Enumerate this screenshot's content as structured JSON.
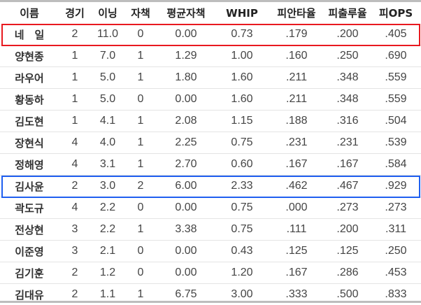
{
  "table": {
    "headers": [
      "이름",
      "경기",
      "이닝",
      "자책",
      "평균자책",
      "WHIP",
      "피안타율",
      "피출루율",
      "피OPS"
    ],
    "rows": [
      [
        "네　일",
        "2",
        "11.0",
        "0",
        "0.00",
        "0.73",
        ".179",
        ".200",
        ".405"
      ],
      [
        "양현종",
        "1",
        "7.0",
        "1",
        "1.29",
        "1.00",
        ".160",
        ".250",
        ".690"
      ],
      [
        "라우어",
        "1",
        "5.0",
        "1",
        "1.80",
        "1.60",
        ".211",
        ".348",
        ".559"
      ],
      [
        "황동하",
        "1",
        "5.0",
        "0",
        "0.00",
        "1.60",
        ".211",
        ".348",
        ".559"
      ],
      [
        "김도현",
        "1",
        "4.1",
        "1",
        "2.08",
        "1.15",
        ".188",
        ".316",
        ".504"
      ],
      [
        "장현식",
        "4",
        "4.0",
        "1",
        "2.25",
        "0.75",
        ".231",
        ".231",
        ".539"
      ],
      [
        "정해영",
        "4",
        "3.1",
        "1",
        "2.70",
        "0.60",
        ".167",
        ".167",
        ".584"
      ],
      [
        "김사윤",
        "2",
        "3.0",
        "2",
        "6.00",
        "2.33",
        ".462",
        ".467",
        ".929"
      ],
      [
        "곽도규",
        "4",
        "2.2",
        "0",
        "0.00",
        "0.75",
        ".000",
        ".273",
        ".273"
      ],
      [
        "전상현",
        "3",
        "2.2",
        "1",
        "3.38",
        "0.75",
        ".111",
        ".200",
        ".311"
      ],
      [
        "이준영",
        "3",
        "2.1",
        "0",
        "0.00",
        "0.43",
        ".125",
        ".125",
        ".250"
      ],
      [
        "김기훈",
        "2",
        "1.2",
        "0",
        "0.00",
        "1.20",
        ".167",
        ".286",
        ".453"
      ],
      [
        "김대유",
        "2",
        "1.1",
        "1",
        "6.75",
        "3.00",
        ".333",
        ".500",
        ".833"
      ]
    ],
    "highlights": [
      {
        "row": 0,
        "color": "#e8191f"
      },
      {
        "row": 7,
        "color": "#1f5ff0"
      }
    ]
  }
}
